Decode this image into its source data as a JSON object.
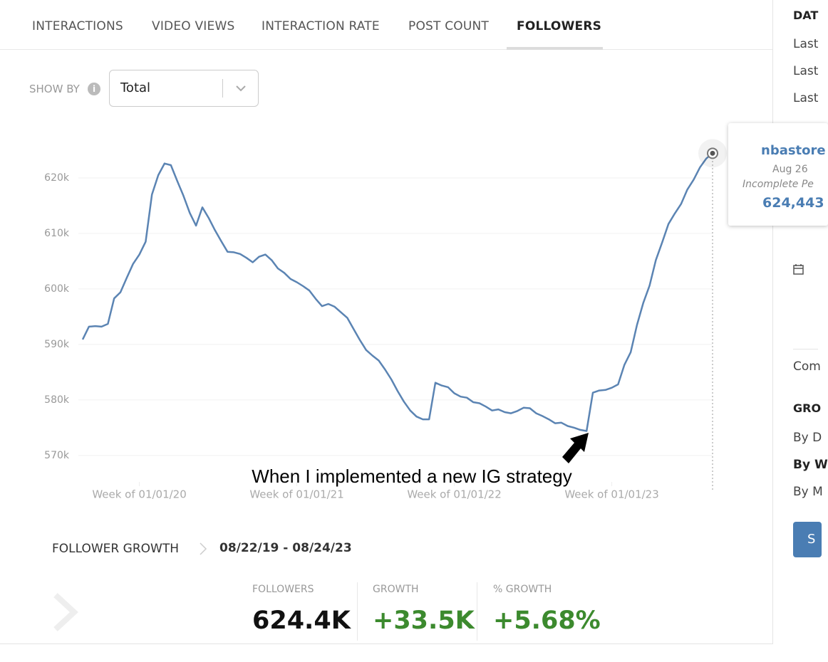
{
  "tabs": [
    "INTERACTIONS",
    "VIDEO VIEWS",
    "INTERACTION RATE",
    "POST COUNT",
    "FOLLOWERS"
  ],
  "show_by": {
    "label": "SHOW BY",
    "value": "Total"
  },
  "chart_data": {
    "type": "line",
    "categories": [
      null,
      null,
      null,
      null,
      null,
      null,
      null,
      null,
      null,
      "Week of 01/01/20",
      null,
      null,
      null,
      null,
      null,
      null,
      null,
      null,
      null,
      null,
      null,
      null,
      null,
      null,
      null,
      null,
      null,
      null,
      null,
      null,
      null,
      null,
      null,
      null,
      "Week of 01/01/21",
      null,
      null,
      null,
      null,
      null,
      null,
      null,
      null,
      null,
      null,
      null,
      null,
      null,
      null,
      null,
      null,
      null,
      null,
      null,
      null,
      null,
      null,
      null,
      null,
      "Week of 01/01/22",
      null,
      null,
      null,
      null,
      null,
      null,
      null,
      null,
      null,
      null,
      null,
      null,
      null,
      null,
      null,
      null,
      null,
      null,
      null,
      null,
      null,
      null,
      null,
      null,
      "Week of 01/01/23",
      null,
      null,
      null,
      null,
      null,
      null,
      null,
      null,
      null,
      null,
      null,
      null,
      null,
      null,
      null,
      null
    ],
    "values": [
      590900,
      593200,
      593300,
      593200,
      593700,
      598300,
      599400,
      602000,
      604500,
      606200,
      608500,
      617000,
      620500,
      622600,
      622300,
      619500,
      616800,
      613700,
      611400,
      614700,
      612800,
      610600,
      608600,
      606700,
      606600,
      606300,
      605600,
      604800,
      605800,
      606200,
      605200,
      603700,
      602900,
      601800,
      601200,
      600500,
      599700,
      598200,
      596900,
      597300,
      596800,
      595800,
      594800,
      592800,
      590800,
      589000,
      588000,
      587100,
      585500,
      583700,
      581600,
      579700,
      578100,
      577000,
      576500,
      576500,
      583100,
      582600,
      582300,
      581200,
      580600,
      580400,
      579600,
      579400,
      578800,
      578100,
      578300,
      577800,
      577600,
      578000,
      578600,
      578500,
      577600,
      577100,
      576500,
      575800,
      575900,
      575300,
      575000,
      574600,
      574400,
      581300,
      581700,
      581800,
      582200,
      582800,
      586300,
      588600,
      593500,
      597500,
      600600,
      605200,
      608400,
      611700,
      613600,
      615300,
      617900,
      619700,
      621900,
      623500,
      624443
    ],
    "color": "#5b84b3",
    "ylim": [
      566000,
      630000
    ],
    "yticks": [
      {
        "value": 570000,
        "label": "570k"
      },
      {
        "value": 580000,
        "label": "580k"
      },
      {
        "value": 590000,
        "label": "590k"
      },
      {
        "value": 600000,
        "label": "600k"
      },
      {
        "value": 610000,
        "label": "610k"
      },
      {
        "value": 620000,
        "label": "620k"
      }
    ],
    "grid": true,
    "annotation": "When I implemented a new IG strategy",
    "tooltip": {
      "account": "nbastore",
      "date": "Aug 26",
      "note": "Incomplete Pe",
      "value": "624,443"
    }
  },
  "growth": {
    "title": "FOLLOWER GROWTH",
    "range": "08/22/19 - 08/24/23",
    "stats": [
      {
        "label": "FOLLOWERS",
        "value": "624.4K"
      },
      {
        "label": "GROWTH",
        "value": "+33.5K"
      },
      {
        "label": "% GROWTH",
        "value": "+5.68%"
      }
    ]
  },
  "sidebar": {
    "items": [
      "DAT",
      "Last",
      "Last",
      "Last",
      "Com",
      "GRO",
      "By D",
      "By W",
      "By M"
    ],
    "button": "S"
  }
}
